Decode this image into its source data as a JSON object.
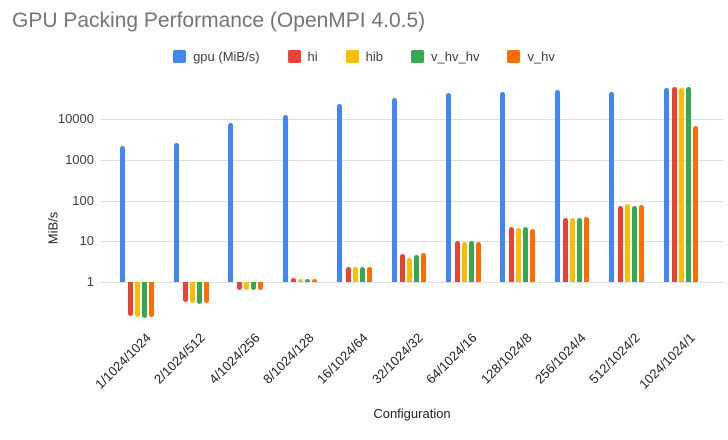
{
  "title": "GPU Packing Performance (OpenMPI 4.0.5)",
  "colors": {
    "background": "#ffffff",
    "title_text": "#757575",
    "axis_text": "#3c4043",
    "tick_label_text": "#202124",
    "gridline": "#e0e0e0"
  },
  "chart_data": {
    "type": "bar",
    "title": "GPU Packing Performance (OpenMPI 4.0.5)",
    "xlabel": "Configuration",
    "ylabel": "MiB/s",
    "y_scale": "log",
    "yticks": [
      1,
      10,
      100,
      1000,
      10000
    ],
    "ylim": [
      0.1,
      75000
    ],
    "grid": true,
    "legend_position": "top",
    "categories": [
      "1/1024/1024",
      "2/1024/512",
      "4/1024/256",
      "8/1024/128",
      "16/1024/64",
      "32/1024/32",
      "64/1024/16",
      "128/1024/8",
      "256/1024/4",
      "512/1024/2",
      "1024/1024/1"
    ],
    "series": [
      {
        "name": "gpu (MiB/s)",
        "color": "#4285F4",
        "values": [
          2200,
          2600,
          8200,
          13000,
          24000,
          34000,
          44000,
          46000,
          52000,
          48000,
          58000
        ]
      },
      {
        "name": "hi",
        "color": "#EA4335",
        "values": [
          0.15,
          0.32,
          0.62,
          1.25,
          2.4,
          5.0,
          10,
          22,
          37,
          75,
          61000
        ]
      },
      {
        "name": "hib",
        "color": "#FBBC04",
        "values": [
          0.14,
          0.31,
          0.64,
          1.2,
          2.3,
          4.0,
          9.6,
          21,
          38,
          83,
          58000
        ]
      },
      {
        "name": "v_hv_hv",
        "color": "#34A853",
        "values": [
          0.13,
          0.29,
          0.64,
          1.2,
          2.3,
          4.7,
          10,
          22,
          38,
          75,
          61000
        ]
      },
      {
        "name": "v_hv",
        "color": "#FF6D01",
        "values": [
          0.14,
          0.31,
          0.65,
          1.2,
          2.4,
          5.2,
          9.6,
          20,
          39,
          80,
          7000
        ]
      }
    ]
  }
}
